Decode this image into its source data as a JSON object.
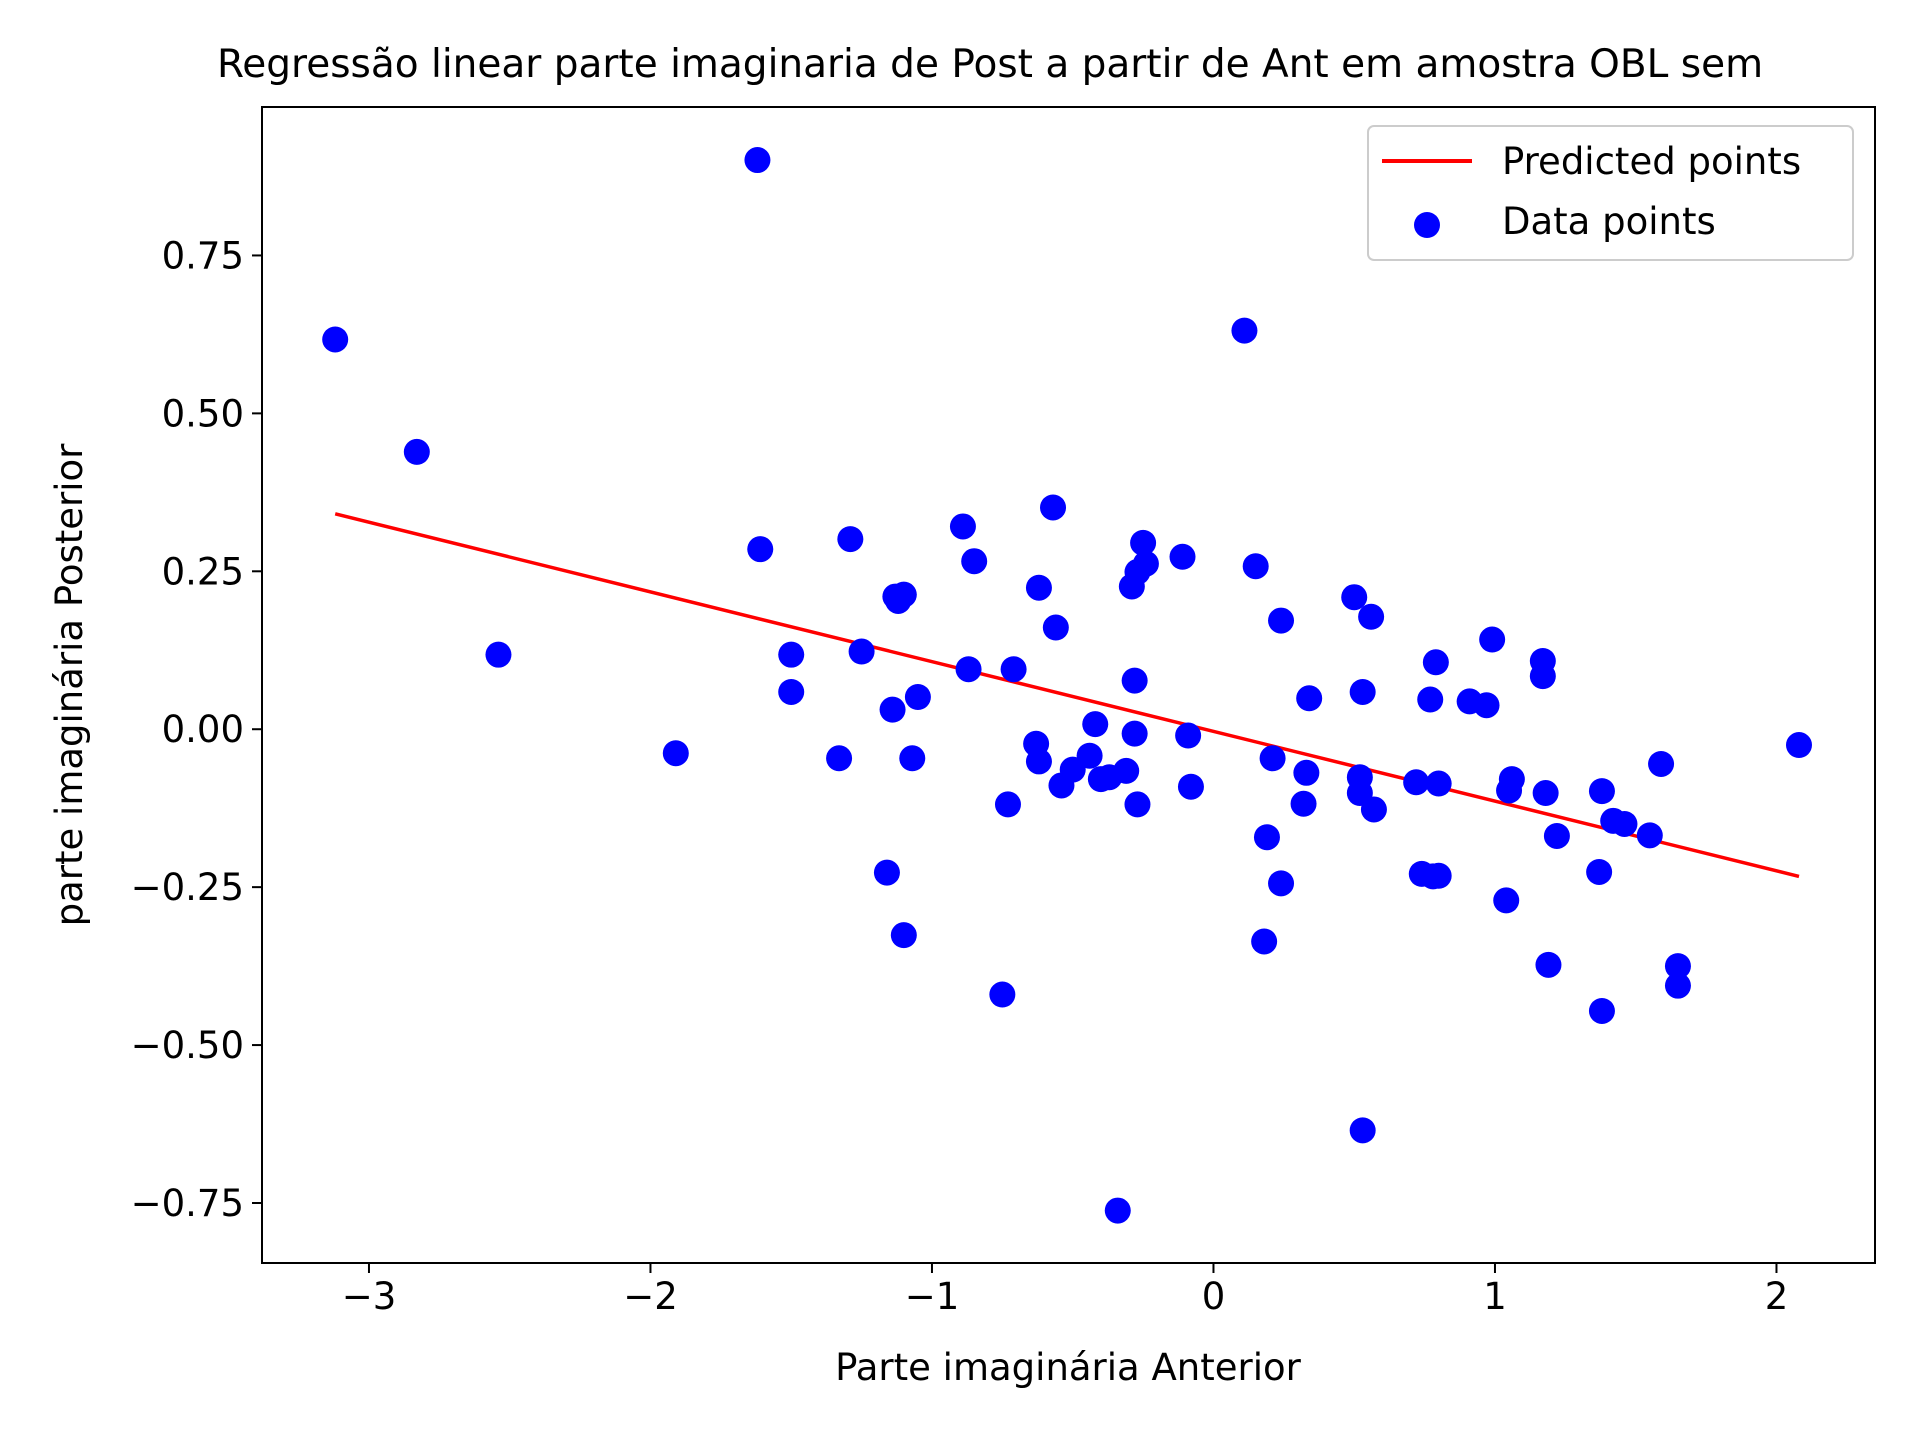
{
  "chart_data": {
    "type": "scatter",
    "title": "Regressão linear parte imaginaria de Post a partir de Ant em amostra OBL sem",
    "xlabel": "Parte imaginária Anterior",
    "ylabel": "parte imaginária Posterior",
    "xlim": [
      -3.38,
      2.35
    ],
    "ylim": [
      -0.845,
      0.985
    ],
    "xticks": [
      -3,
      -2,
      -1,
      0,
      1,
      2
    ],
    "xtick_labels": [
      "−3",
      "−2",
      "−1",
      "0",
      "1",
      "2"
    ],
    "yticks": [
      -0.75,
      -0.5,
      -0.25,
      0.0,
      0.25,
      0.5,
      0.75
    ],
    "ytick_labels": [
      "−0.75",
      "−0.50",
      "−0.25",
      "0.00",
      "0.25",
      "0.50",
      "0.75"
    ],
    "grid": false,
    "legend_position": "top-right",
    "series": [
      {
        "name": "Predicted points",
        "kind": "line",
        "color": "#ff0000",
        "x": [
          -3.12,
          2.08
        ],
        "y": [
          0.341,
          -0.233
        ]
      },
      {
        "name": "Data points",
        "kind": "scatter",
        "color": "#0000ff",
        "x": [
          -3.12,
          -2.83,
          -2.54,
          -1.91,
          -1.62,
          -1.61,
          -1.5,
          -1.5,
          -1.33,
          -1.29,
          -1.25,
          -1.16,
          -1.14,
          -1.13,
          -1.12,
          -1.1,
          -1.1,
          -1.07,
          -1.05,
          -0.89,
          -0.87,
          -0.85,
          -0.75,
          -0.73,
          -0.71,
          -0.63,
          -0.62,
          -0.62,
          -0.57,
          -0.56,
          -0.54,
          -0.5,
          -0.44,
          -0.42,
          -0.4,
          -0.37,
          -0.34,
          -0.31,
          -0.29,
          -0.28,
          -0.28,
          -0.27,
          -0.27,
          -0.25,
          -0.24,
          -0.11,
          -0.09,
          -0.08,
          0.11,
          0.15,
          0.18,
          0.19,
          0.21,
          0.24,
          0.24,
          0.32,
          0.33,
          0.34,
          0.5,
          0.52,
          0.52,
          0.53,
          0.53,
          0.56,
          0.57,
          0.72,
          0.74,
          0.77,
          0.78,
          0.79,
          0.8,
          0.8,
          0.91,
          0.97,
          0.99,
          1.04,
          1.05,
          1.06,
          1.17,
          1.17,
          1.18,
          1.19,
          1.22,
          1.37,
          1.38,
          1.38,
          1.42,
          1.46,
          1.55,
          1.59,
          1.65,
          1.65,
          2.08
        ],
        "y": [
          0.617,
          0.439,
          0.118,
          -0.038,
          0.901,
          0.285,
          0.118,
          0.059,
          -0.046,
          0.301,
          0.123,
          -0.227,
          0.031,
          0.21,
          0.203,
          0.213,
          -0.326,
          -0.046,
          0.051,
          0.321,
          0.095,
          0.266,
          -0.42,
          -0.119,
          0.095,
          -0.023,
          -0.051,
          0.224,
          0.351,
          0.161,
          -0.089,
          -0.064,
          -0.042,
          0.008,
          -0.079,
          -0.076,
          -0.762,
          -0.066,
          0.226,
          -0.007,
          0.077,
          -0.119,
          0.249,
          0.295,
          0.262,
          0.273,
          -0.01,
          -0.091,
          0.631,
          0.258,
          -0.336,
          -0.171,
          -0.046,
          0.172,
          -0.244,
          -0.118,
          -0.069,
          0.049,
          0.209,
          -0.076,
          -0.101,
          -0.635,
          0.059,
          0.178,
          -0.127,
          -0.084,
          -0.229,
          0.047,
          -0.233,
          0.106,
          -0.086,
          -0.232,
          0.044,
          0.038,
          0.142,
          -0.271,
          -0.097,
          -0.079,
          0.084,
          0.108,
          -0.101,
          -0.373,
          -0.169,
          -0.226,
          -0.446,
          -0.098,
          -0.145,
          -0.15,
          -0.168,
          -0.055,
          -0.375,
          -0.406,
          -0.025
        ]
      }
    ]
  }
}
